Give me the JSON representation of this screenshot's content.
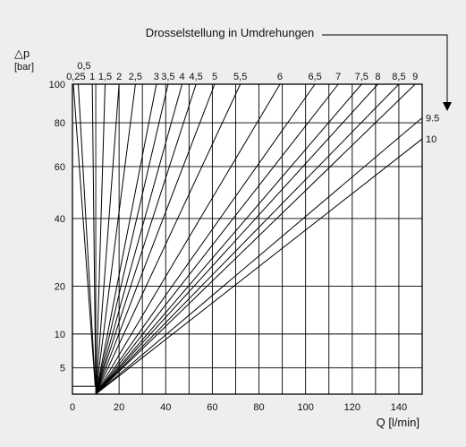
{
  "chart_data": {
    "type": "line",
    "title": "Drosselstellung in Umdrehungen",
    "xlabel": "Q [l/min]",
    "ylabel_symbol": "△p",
    "ylabel_unit": "[bar]",
    "xlim": [
      0,
      150
    ],
    "ylim": [
      2.3,
      100
    ],
    "y_scale": "sqrt",
    "grid": true,
    "x_ticks": [
      {
        "value": 0,
        "label": "0"
      },
      {
        "value": 20,
        "label": "20"
      },
      {
        "value": 40,
        "label": "40"
      },
      {
        "value": 60,
        "label": "60"
      },
      {
        "value": 80,
        "label": "80"
      },
      {
        "value": 100,
        "label": "100"
      },
      {
        "value": 120,
        "label": "120"
      },
      {
        "value": 140,
        "label": "140"
      }
    ],
    "x_gridlines": [
      0,
      10,
      20,
      30,
      40,
      50,
      60,
      70,
      80,
      90,
      100,
      110,
      120,
      130,
      140
    ],
    "y_ticks": [
      {
        "value": 5,
        "label": "5"
      },
      {
        "value": 10,
        "label": "10"
      },
      {
        "value": 20,
        "label": "20"
      },
      {
        "value": 40,
        "label": "40"
      },
      {
        "value": 60,
        "label": "60"
      },
      {
        "value": 80,
        "label": "80"
      },
      {
        "value": 100,
        "label": "100"
      }
    ],
    "series": [
      {
        "name": "0,25",
        "q_at_100bar": 0.4
      },
      {
        "name": "0,5",
        "q_at_100bar": 2.5
      },
      {
        "name": "1",
        "q_at_100bar": 8.5
      },
      {
        "name": "1,5",
        "q_at_100bar": 14
      },
      {
        "name": "2",
        "q_at_100bar": 20
      },
      {
        "name": "2,5",
        "q_at_100bar": 27
      },
      {
        "name": "3",
        "q_at_100bar": 36
      },
      {
        "name": "3,5",
        "q_at_100bar": 41
      },
      {
        "name": "4",
        "q_at_100bar": 47
      },
      {
        "name": "4,5",
        "q_at_100bar": 53
      },
      {
        "name": "5",
        "q_at_100bar": 61
      },
      {
        "name": "5,5",
        "q_at_100bar": 72
      },
      {
        "name": "6",
        "q_at_100bar": 89
      },
      {
        "name": "6,5",
        "q_at_100bar": 104
      },
      {
        "name": "7",
        "q_at_100bar": 114
      },
      {
        "name": "7,5",
        "q_at_100bar": 124
      },
      {
        "name": "8",
        "q_at_100bar": 131
      },
      {
        "name": "8,5",
        "q_at_100bar": 140
      },
      {
        "name": "9",
        "q_at_100bar": 147
      },
      {
        "name": "9.5",
        "q_at_100bar": 167
      },
      {
        "name": "10",
        "q_at_100bar": 180
      }
    ],
    "line_origin": {
      "q": 10,
      "dp": 2.3
    },
    "origin_box": {
      "q_from": 0,
      "q_to": 10,
      "dp_from": 2.3,
      "dp_to": 3.0
    }
  }
}
